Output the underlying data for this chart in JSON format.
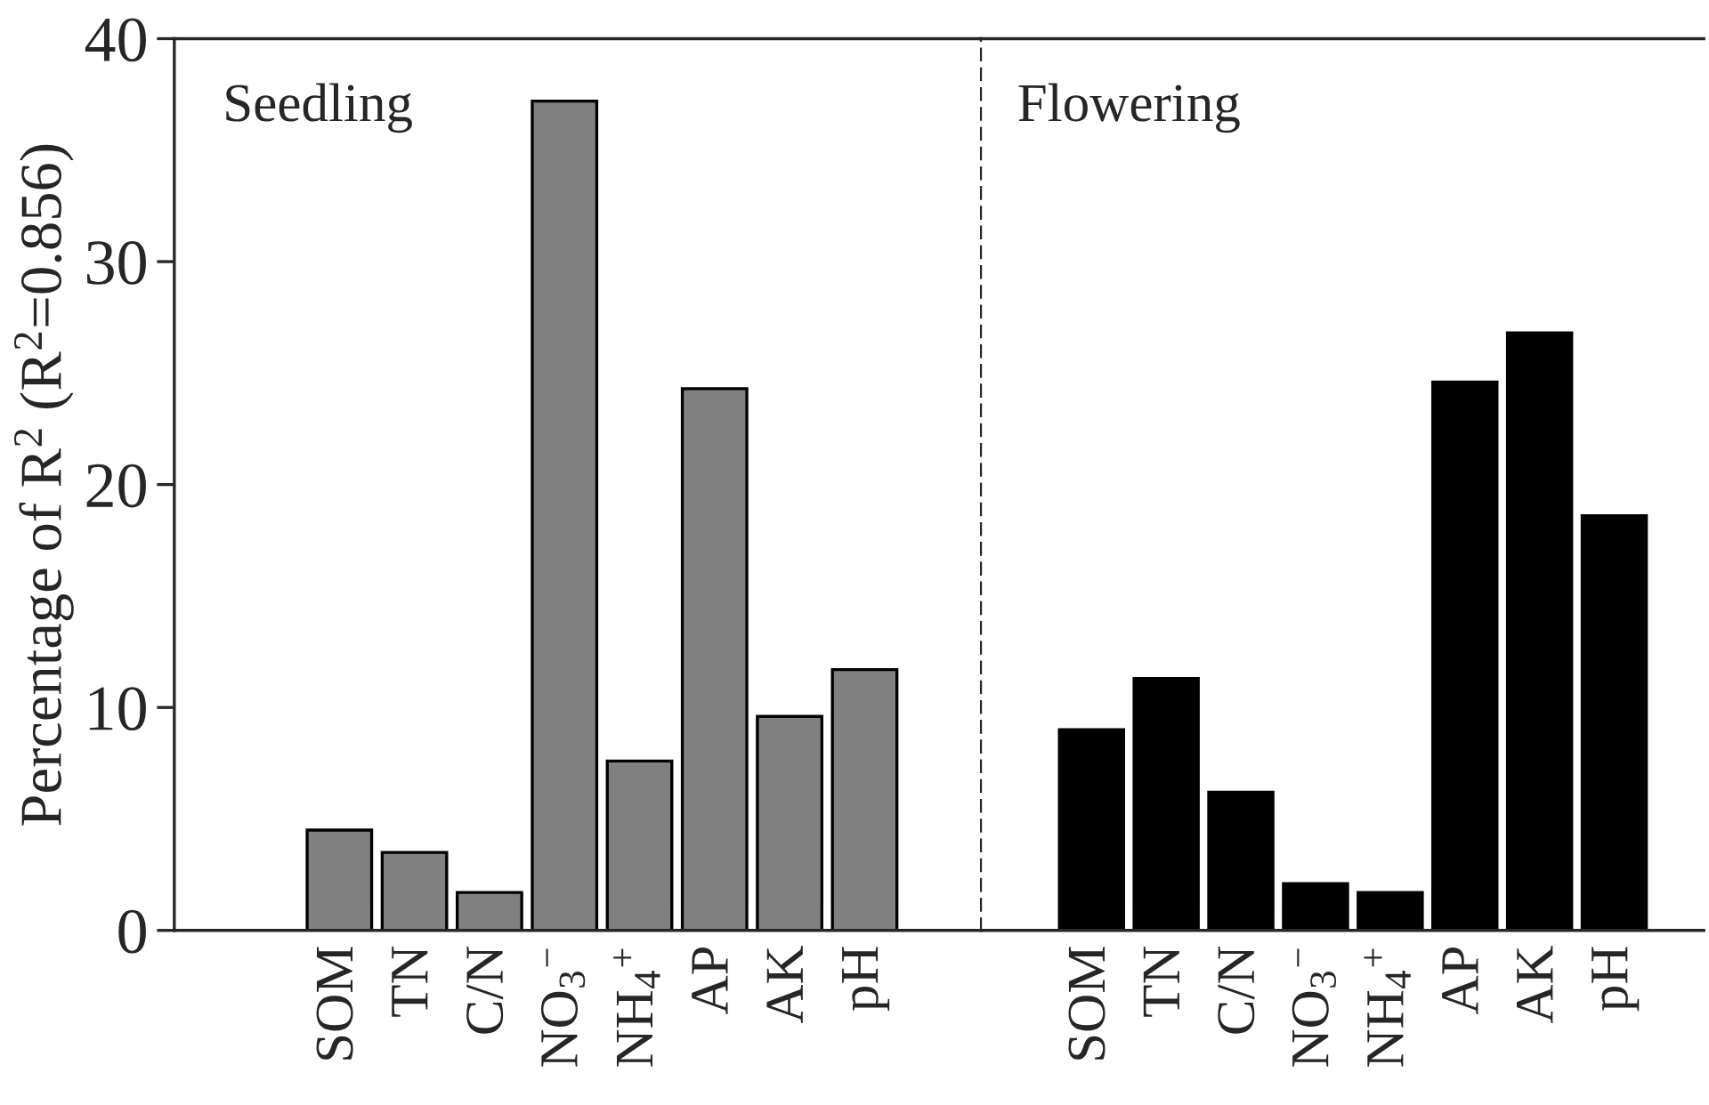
{
  "chart_data": [
    {
      "type": "bar",
      "categories": [
        "SOM",
        "TN",
        "C/N",
        "NO$_{3}$$^{−}$",
        "NH$_{4}$$^{+}$",
        "AP",
        "AK",
        "pH"
      ],
      "ylabel": "Percentage of R$^{2}$ (R$^{2}$=0.856)",
      "ylim": [
        0,
        40
      ],
      "yticks": [
        0,
        10,
        20,
        30,
        40
      ],
      "series": [
        {
          "name": "Seedling",
          "color": "#808080",
          "values": [
            4.5,
            3.5,
            1.7,
            37.2,
            7.6,
            24.3,
            9.6,
            11.7
          ]
        }
      ]
    },
    {
      "type": "bar",
      "categories": [
        "SOM",
        "TN",
        "C/N",
        "NO$_{3}$$^{−}$",
        "NH$_{4}$$^{+}$",
        "AP",
        "AK",
        "pH"
      ],
      "ylim": [
        0,
        40
      ],
      "yticks": [
        0,
        10,
        20,
        30,
        40
      ],
      "tick_labels": "x",
      "series": [
        {
          "name": "Flowering",
          "color": "#000000",
          "values": [
            9.0,
            11.3,
            6.2,
            2.1,
            1.7,
            24.6,
            26.8,
            18.6
          ]
        }
      ]
    }
  ]
}
